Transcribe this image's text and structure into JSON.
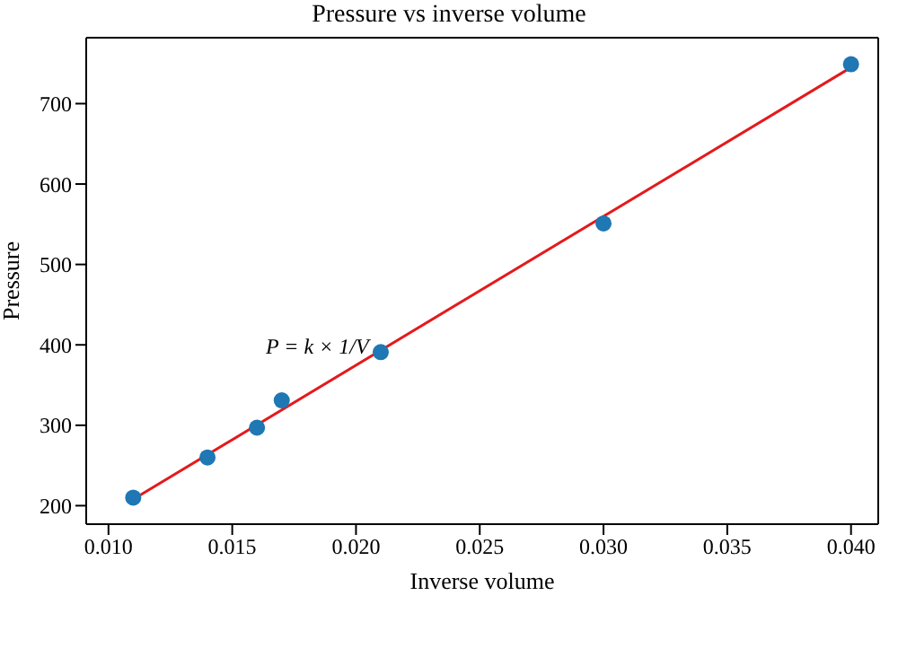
{
  "chart_data": {
    "type": "scatter",
    "title": "Pressure vs inverse volume",
    "xlabel": "Inverse volume",
    "ylabel": "Pressure",
    "series": [
      {
        "color": "#1f77b4",
        "x": [
          0.011,
          0.014,
          0.016,
          0.017,
          0.021,
          0.03,
          0.04
        ],
        "values": [
          210,
          260,
          297,
          331,
          391,
          551,
          749
        ],
        "marker": "circle"
      },
      {
        "type": "line",
        "color": "#e31a1c",
        "x": [
          0.011,
          0.04
        ],
        "values": [
          208,
          745
        ],
        "marker": "none",
        "line_style": "solid"
      }
    ],
    "xlim": [
      0.0091,
      0.0411
    ],
    "ylim": [
      177,
      782
    ],
    "xticks": [
      {
        "value": 0.01,
        "label": "0.010"
      },
      0.015,
      {
        "value": 0.02,
        "label": "0.020"
      },
      0.025,
      {
        "value": 0.03,
        "label": "0.030"
      },
      0.035,
      {
        "value": 0.04,
        "label": "0.040"
      }
    ],
    "yticks": [
      200,
      300,
      400,
      500,
      600,
      700
    ],
    "annotations": [
      "P = k × 1/V"
    ]
  }
}
